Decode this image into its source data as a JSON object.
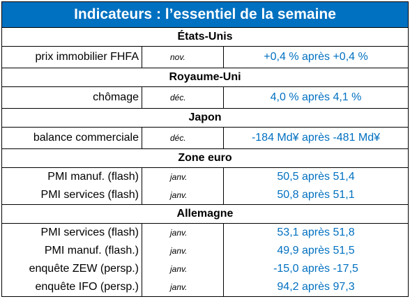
{
  "title": "Indicateurs : l’essentiel de la semaine",
  "sections": [
    {
      "name": "États-Unis",
      "rows": [
        {
          "indicator": "prix immobilier FHFA",
          "period": "nov.",
          "value": "+0,4 % après +0,4 %"
        }
      ]
    },
    {
      "name": "Royaume-Uni",
      "rows": [
        {
          "indicator": "chômage",
          "period": "déc.",
          "value": "4,0 % après 4,1 %"
        }
      ]
    },
    {
      "name": "Japon",
      "rows": [
        {
          "indicator": "balance commerciale",
          "period": "déc.",
          "value": "-184 Md¥ après -481 Md¥"
        }
      ]
    },
    {
      "name": "Zone euro",
      "rows": [
        {
          "indicator": "PMI manuf. (flash)",
          "period": "janv.",
          "value": "50,5 après 51,4"
        },
        {
          "indicator": "PMI services (flash)",
          "period": "janv.",
          "value": "50,8 après 51,1"
        }
      ]
    },
    {
      "name": "Allemagne",
      "rows": [
        {
          "indicator": "PMI services (flash)",
          "period": "janv.",
          "value": "53,1 après 51,8"
        },
        {
          "indicator": "PMI manuf. (flash.)",
          "period": "janv.",
          "value": "49,9 après 51,5"
        },
        {
          "indicator": "enquête ZEW (persp.)",
          "period": "janv.",
          "value": "-15,0 après -17,5"
        },
        {
          "indicator": "enquête IFO (persp.)",
          "period": "janv.",
          "value": "94,2 après 97,3"
        }
      ]
    }
  ]
}
